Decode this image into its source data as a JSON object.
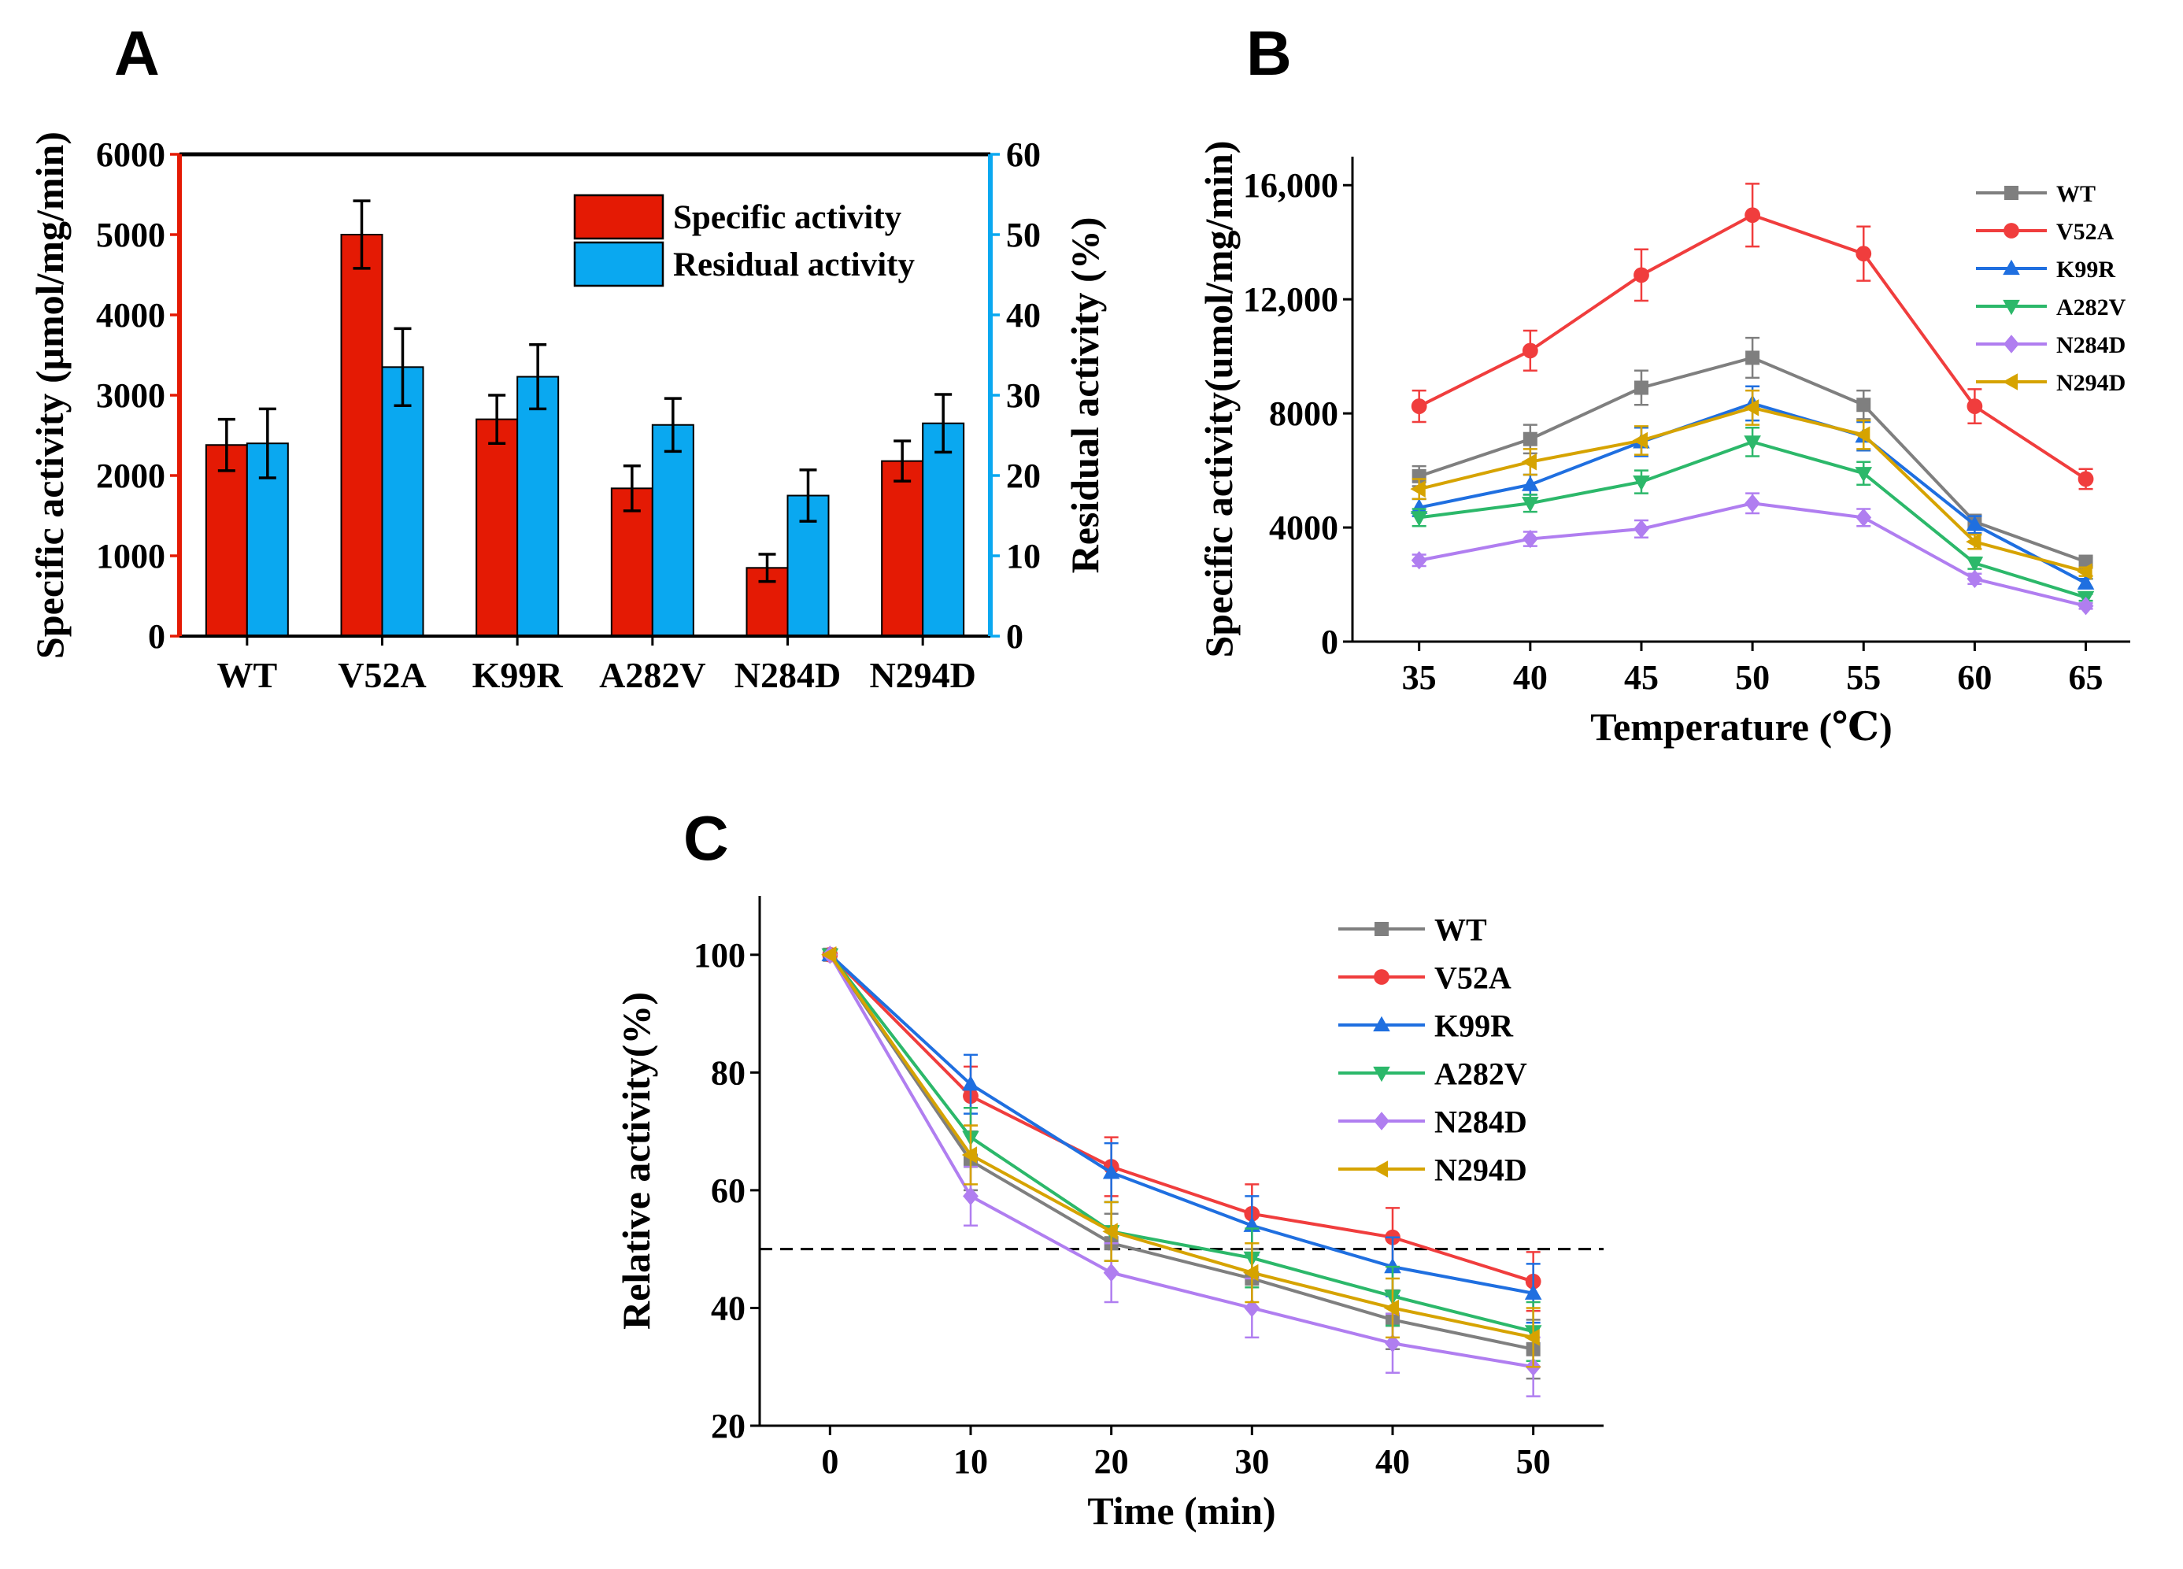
{
  "panel_labels": [
    "A",
    "B",
    "C"
  ],
  "colors": {
    "specific": "#e41a04",
    "residual": "#0aa8f0",
    "axis_left_A": "#e41a04",
    "axis_right_A": "#0aa8f0",
    "WT": "#7f7f7f",
    "V52A": "#f03d3d",
    "K99R": "#1f6fe0",
    "A282V": "#2cb86a",
    "N284D": "#b07ef0",
    "N294D": "#d6a300"
  },
  "chart_data": [
    {
      "id": "A",
      "type": "bar",
      "title": "",
      "xlabel": "",
      "ylabel": "Specific activity (μmol/mg/min)",
      "y2label": "Residual activity (%)",
      "ylim": [
        0,
        6000
      ],
      "y2lim": [
        0,
        60
      ],
      "yticks": [
        0,
        1000,
        2000,
        3000,
        4000,
        5000,
        6000
      ],
      "y2ticks": [
        0,
        10,
        20,
        30,
        40,
        50,
        60
      ],
      "legend_position": "top-right",
      "categories": [
        "WT",
        "V52A",
        "K99R",
        "A282V",
        "N284D",
        "N294D"
      ],
      "series": [
        {
          "name": "Specific activity",
          "axis": "left",
          "values": [
            2380,
            5000,
            2700,
            1840,
            850,
            2180
          ],
          "errors": [
            320,
            420,
            300,
            280,
            170,
            250
          ]
        },
        {
          "name": "Residual activity",
          "axis": "right",
          "values": [
            24,
            33.5,
            32.3,
            26.3,
            17.5,
            26.5
          ],
          "errors": [
            4.3,
            4.8,
            4.0,
            3.3,
            3.2,
            3.6
          ]
        }
      ]
    },
    {
      "id": "B",
      "type": "line",
      "title": "",
      "xlabel": "Temperature (℃)",
      "ylabel": "Specific activity(umol/mg/min)",
      "xlim": [
        32,
        67
      ],
      "ylim": [
        0,
        17000
      ],
      "xticks": [
        35,
        40,
        45,
        50,
        55,
        60,
        65
      ],
      "yticks": [
        0,
        4000,
        8000,
        12000,
        16000
      ],
      "ytick_labels": [
        "0",
        "4000",
        "8000",
        "12,000",
        "16,000"
      ],
      "legend_position": "top-right",
      "x": [
        35,
        40,
        45,
        50,
        55,
        60,
        65
      ],
      "series": [
        {
          "name": "WT",
          "marker": "square",
          "values": [
            5800,
            7100,
            8900,
            9950,
            8300,
            4200,
            2800
          ],
          "errors": [
            350,
            500,
            600,
            700,
            500,
            250,
            150
          ]
        },
        {
          "name": "V52A",
          "marker": "circle",
          "values": [
            8250,
            10200,
            12850,
            14950,
            13600,
            8250,
            5700
          ],
          "errors": [
            550,
            700,
            900,
            1100,
            950,
            600,
            350
          ]
        },
        {
          "name": "K99R",
          "marker": "triangle-up",
          "values": [
            4700,
            5500,
            7000,
            8350,
            7200,
            4100,
            2050
          ],
          "errors": [
            300,
            350,
            500,
            600,
            500,
            300,
            150
          ]
        },
        {
          "name": "A282V",
          "marker": "triangle-down",
          "values": [
            4350,
            4850,
            5600,
            7000,
            5900,
            2750,
            1550
          ],
          "errors": [
            300,
            300,
            400,
            500,
            400,
            200,
            120
          ]
        },
        {
          "name": "N284D",
          "marker": "diamond",
          "values": [
            2850,
            3600,
            3950,
            4850,
            4350,
            2200,
            1250
          ],
          "errors": [
            200,
            250,
            300,
            350,
            300,
            180,
            100
          ]
        },
        {
          "name": "N294D",
          "marker": "triangle-left",
          "values": [
            5350,
            6300,
            7050,
            8200,
            7250,
            3500,
            2450
          ],
          "errors": [
            350,
            450,
            500,
            600,
            500,
            250,
            150
          ]
        }
      ]
    },
    {
      "id": "C",
      "type": "line",
      "title": "",
      "xlabel": "Time (min)",
      "ylabel": "Relative activity(%)",
      "xlim": [
        -5,
        55
      ],
      "ylim": [
        20,
        110
      ],
      "xticks": [
        0,
        10,
        20,
        30,
        40,
        50
      ],
      "yticks": [
        20,
        40,
        60,
        80,
        100
      ],
      "reference_line": {
        "y": 50,
        "style": "dashed"
      },
      "legend_position": "top-right",
      "x": [
        0,
        10,
        20,
        30,
        40,
        50
      ],
      "series": [
        {
          "name": "WT",
          "marker": "square",
          "values": [
            100,
            65,
            51,
            45,
            38,
            33
          ],
          "errors": [
            0,
            5,
            5,
            5,
            5,
            5
          ]
        },
        {
          "name": "V52A",
          "marker": "circle",
          "values": [
            100,
            76,
            64,
            56,
            52,
            44.5
          ],
          "errors": [
            0,
            5,
            5,
            5,
            5,
            5
          ]
        },
        {
          "name": "K99R",
          "marker": "triangle-up",
          "values": [
            100,
            78,
            63,
            54,
            47,
            42.5
          ],
          "errors": [
            0,
            5,
            5,
            5,
            5,
            5
          ]
        },
        {
          "name": "A282V",
          "marker": "triangle-down",
          "values": [
            100,
            69,
            53,
            48.5,
            42,
            36
          ],
          "errors": [
            0,
            5,
            5,
            5,
            5,
            5
          ]
        },
        {
          "name": "N284D",
          "marker": "diamond",
          "values": [
            100,
            59,
            46,
            40,
            34,
            30
          ],
          "errors": [
            0,
            5,
            5,
            5,
            5,
            5
          ]
        },
        {
          "name": "N294D",
          "marker": "triangle-left",
          "values": [
            100,
            66,
            53,
            46,
            40,
            35
          ],
          "errors": [
            0,
            5,
            5,
            5,
            5,
            5
          ]
        }
      ]
    }
  ]
}
